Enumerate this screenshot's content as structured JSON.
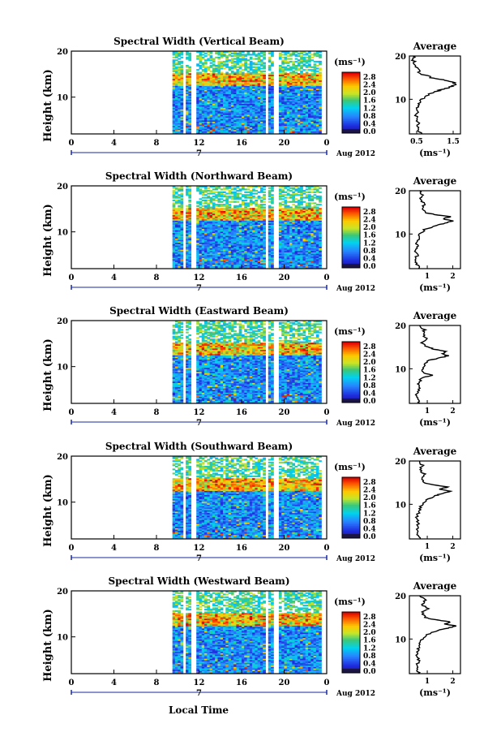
{
  "figure": {
    "xlabel": "Local Time",
    "ylabel": "Height (km)",
    "date_label": "Aug 2012",
    "day_label": "7",
    "x_ticks": [
      "0",
      "4",
      "8",
      "12",
      "16",
      "20",
      "0"
    ],
    "y_ticks": [
      "20",
      "10"
    ],
    "unit_label": "(ms⁻¹)",
    "colorbar_ticks": [
      "2.8",
      "2.4",
      "2.0",
      "1.6",
      "1.2",
      "0.8",
      "0.4",
      "0.0"
    ],
    "profile_title": "Average",
    "profile_xlabel": "(ms⁻¹)"
  },
  "chart_data": [
    {
      "type": "heatmap",
      "title": "Spectral Width (Vertical Beam)",
      "quantity": "spectral width",
      "unit": "ms-1",
      "x_range_hours": [
        0,
        24
      ],
      "y_range_km": [
        2,
        20
      ],
      "data_start_hour": 9.5,
      "data_gaps_hours": [
        [
          10.3,
          10.6
        ],
        [
          11.2,
          11.6
        ],
        [
          18.2,
          18.5
        ],
        [
          19.0,
          19.3
        ]
      ],
      "color_range": [
        0.0,
        2.8
      ],
      "color_ticks": [
        2.8,
        2.4,
        2.0,
        1.6,
        1.2,
        0.8,
        0.4,
        0.0
      ],
      "enhanced_layer_km": [
        12.5,
        15
      ],
      "profile": {
        "title": "Average",
        "x_ticks": [
          "0.5",
          "1.5"
        ],
        "xlim": [
          0.3,
          1.7
        ],
        "heights_km": [
          2,
          3,
          4,
          5,
          6,
          7,
          8,
          9,
          10,
          11,
          12,
          12.5,
          13,
          13.5,
          14,
          14.5,
          15,
          16,
          17,
          18,
          19,
          20
        ],
        "values": [
          0.6,
          0.55,
          0.5,
          0.55,
          0.5,
          0.5,
          0.55,
          0.6,
          0.65,
          0.8,
          1.1,
          1.3,
          1.45,
          1.6,
          1.45,
          1.2,
          0.9,
          0.6,
          0.5,
          0.45,
          0.4,
          0.4
        ]
      }
    },
    {
      "type": "heatmap",
      "title": "Spectral Width (Northward Beam)",
      "quantity": "spectral width",
      "unit": "ms-1",
      "x_range_hours": [
        0,
        24
      ],
      "y_range_km": [
        2,
        20
      ],
      "data_start_hour": 9.5,
      "data_gaps_hours": [
        [
          10.3,
          10.6
        ],
        [
          11.2,
          11.6
        ],
        [
          18.2,
          18.5
        ],
        [
          19.0,
          19.3
        ]
      ],
      "color_range": [
        0.0,
        2.8
      ],
      "color_ticks": [
        2.8,
        2.4,
        2.0,
        1.6,
        1.2,
        0.8,
        0.4,
        0.0
      ],
      "enhanced_layer_km": [
        12.5,
        15
      ],
      "profile": {
        "title": "Average",
        "x_ticks": [
          "1",
          "2"
        ],
        "xlim": [
          0.3,
          2.3
        ],
        "heights_km": [
          2,
          3,
          4,
          5,
          6,
          7,
          8,
          9,
          10,
          11,
          12,
          12.5,
          13,
          13.5,
          14,
          14.5,
          15,
          16,
          17,
          18,
          19,
          20
        ],
        "values": [
          0.7,
          0.6,
          0.55,
          0.6,
          0.55,
          0.6,
          0.6,
          0.65,
          0.7,
          0.9,
          1.4,
          1.7,
          2.0,
          1.6,
          1.9,
          1.3,
          0.9,
          0.8,
          0.9,
          0.7,
          0.8,
          0.7
        ]
      }
    },
    {
      "type": "heatmap",
      "title": "Spectral Width (Eastward Beam)",
      "quantity": "spectral width",
      "unit": "ms-1",
      "x_range_hours": [
        0,
        24
      ],
      "y_range_km": [
        2,
        20
      ],
      "data_start_hour": 9.5,
      "data_gaps_hours": [
        [
          10.3,
          10.6
        ],
        [
          11.2,
          11.6
        ],
        [
          18.2,
          18.5
        ],
        [
          19.0,
          19.3
        ]
      ],
      "color_range": [
        0.0,
        2.8
      ],
      "color_ticks": [
        2.8,
        2.4,
        2.0,
        1.6,
        1.2,
        0.8,
        0.4,
        0.0
      ],
      "enhanced_layer_km": [
        12.5,
        15
      ],
      "profile": {
        "title": "Average",
        "x_ticks": [
          "1",
          "2"
        ],
        "xlim": [
          0.3,
          2.3
        ],
        "heights_km": [
          2,
          3,
          4,
          5,
          6,
          7,
          8,
          8.5,
          9,
          10,
          11,
          12,
          12.5,
          13,
          13.5,
          14,
          14.5,
          15,
          16,
          17,
          18,
          19,
          20
        ],
        "values": [
          0.7,
          0.65,
          0.6,
          0.7,
          0.65,
          0.7,
          0.8,
          1.2,
          0.9,
          0.8,
          0.9,
          1.1,
          1.5,
          1.8,
          1.6,
          1.7,
          1.3,
          1.0,
          0.8,
          1.0,
          0.8,
          0.9,
          0.7
        ]
      }
    },
    {
      "type": "heatmap",
      "title": "Spectral Width (Southward Beam)",
      "quantity": "spectral width",
      "unit": "ms-1",
      "x_range_hours": [
        0,
        24
      ],
      "y_range_km": [
        2,
        20
      ],
      "data_start_hour": 9.5,
      "data_gaps_hours": [
        [
          10.3,
          10.6
        ],
        [
          11.2,
          11.6
        ],
        [
          18.2,
          18.5
        ],
        [
          19.0,
          19.3
        ]
      ],
      "color_range": [
        0.0,
        2.8
      ],
      "color_ticks": [
        2.8,
        2.4,
        2.0,
        1.6,
        1.2,
        0.8,
        0.4,
        0.0
      ],
      "enhanced_layer_km": [
        12.5,
        15
      ],
      "profile": {
        "title": "Average",
        "x_ticks": [
          "1",
          "2"
        ],
        "xlim": [
          0.3,
          2.3
        ],
        "heights_km": [
          2,
          3,
          4,
          5,
          6,
          7,
          8,
          9,
          10,
          11,
          12,
          12.5,
          13,
          13.5,
          14,
          14.5,
          15,
          16,
          17,
          18,
          19,
          20
        ],
        "values": [
          0.7,
          0.6,
          0.6,
          0.65,
          0.6,
          0.6,
          0.65,
          0.7,
          0.8,
          1.0,
          1.3,
          1.6,
          1.9,
          1.5,
          1.8,
          1.2,
          0.9,
          0.8,
          0.9,
          0.7,
          0.8,
          0.7
        ]
      }
    },
    {
      "type": "heatmap",
      "title": "Spectral Width (Westward Beam)",
      "quantity": "spectral width",
      "unit": "ms-1",
      "x_range_hours": [
        0,
        24
      ],
      "y_range_km": [
        2,
        20
      ],
      "data_start_hour": 9.5,
      "data_gaps_hours": [
        [
          10.3,
          10.6
        ],
        [
          11.2,
          11.6
        ],
        [
          18.2,
          18.5
        ],
        [
          19.0,
          19.3
        ]
      ],
      "color_range": [
        0.0,
        2.8
      ],
      "color_ticks": [
        2.8,
        2.4,
        2.0,
        1.6,
        1.2,
        0.8,
        0.4,
        0.0
      ],
      "enhanced_layer_km": [
        12.5,
        15
      ],
      "profile": {
        "title": "Average",
        "x_ticks": [
          "1",
          "2"
        ],
        "xlim": [
          0.3,
          2.3
        ],
        "heights_km": [
          2,
          3,
          4,
          5,
          6,
          7,
          8,
          9,
          10,
          11,
          12,
          12.5,
          13,
          13.5,
          14,
          14.5,
          15,
          16,
          17,
          18,
          19,
          20
        ],
        "values": [
          0.7,
          0.6,
          0.6,
          0.65,
          0.6,
          0.6,
          0.65,
          0.7,
          0.8,
          1.0,
          1.4,
          1.8,
          2.1,
          1.7,
          1.9,
          1.3,
          0.9,
          0.8,
          1.0,
          0.8,
          0.9,
          0.7
        ]
      }
    }
  ]
}
